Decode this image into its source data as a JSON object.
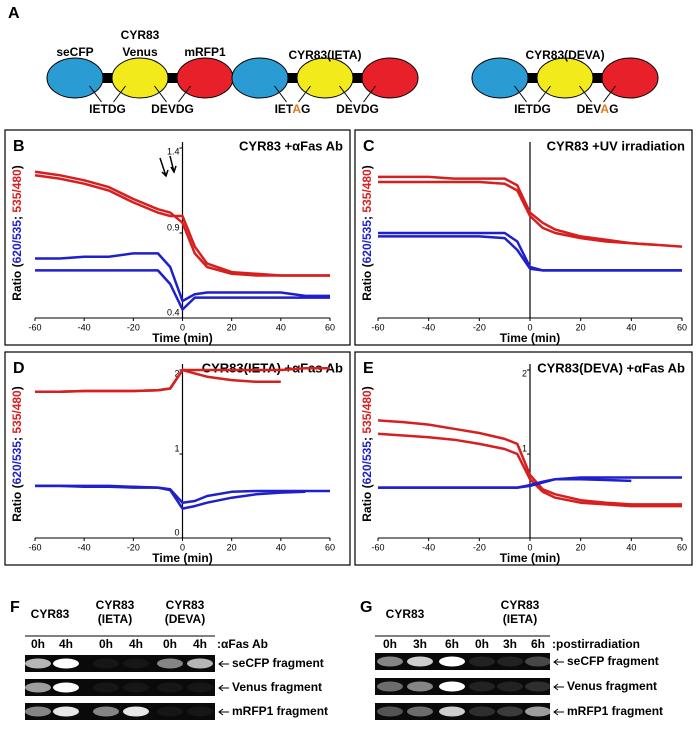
{
  "panel_a": {
    "letter": "A",
    "domains": [
      "seCFP",
      "Venus",
      "mRFP1"
    ],
    "constructs": [
      {
        "name": "CYR83",
        "site1": [
          "IETDG"
        ],
        "site2": [
          "DEVDG"
        ]
      },
      {
        "name": "CYR83(IETA)",
        "site1": [
          "IET",
          "A",
          "G"
        ],
        "site2": [
          "DEVDG"
        ]
      },
      {
        "name": "CYR83(DEVA)",
        "site1": [
          "IETDG"
        ],
        "site2": [
          "DEV",
          "A",
          "G"
        ]
      }
    ]
  },
  "chart_data": [
    {
      "type": "line",
      "letter": "B",
      "title": "CYR83 +αFas Ab",
      "xlabel": "Time (min)",
      "ylabel": [
        "Ratio (",
        "620/535",
        "; ",
        "535/480",
        ")"
      ],
      "ylabel_colors": [
        "#000000",
        "#1f1fcc",
        "#000000",
        "#d62020",
        "#000000"
      ],
      "x": [
        -60,
        -50,
        -40,
        -30,
        -20,
        -10,
        -5,
        0,
        5,
        10,
        20,
        30,
        40,
        50,
        60
      ],
      "xlim": [
        -60,
        60
      ],
      "xticks": [
        -60,
        -40,
        -20,
        0,
        20,
        40,
        60
      ],
      "ylim": [
        0.4,
        1.4
      ],
      "yticks": [
        0.4,
        0.9,
        1.4
      ],
      "series": [
        {
          "color": "#d62020",
          "values": [
            1.24,
            1.22,
            1.19,
            1.15,
            1.08,
            1.02,
            1.0,
            1.0,
            0.82,
            0.72,
            0.67,
            0.66,
            0.65,
            0.65,
            0.65
          ]
        },
        {
          "color": "#d62020",
          "values": [
            1.26,
            1.24,
            1.21,
            1.17,
            1.1,
            1.04,
            1.02,
            0.96,
            0.78,
            0.7,
            0.66,
            0.65,
            0.65,
            0.65,
            0.65
          ]
        },
        {
          "color": "#1f1fcc",
          "values": [
            0.75,
            0.75,
            0.76,
            0.76,
            0.78,
            0.78,
            0.7,
            0.5,
            0.54,
            0.55,
            0.55,
            0.55,
            0.55,
            0.53,
            0.53
          ]
        },
        {
          "color": "#1f1fcc",
          "values": [
            0.68,
            0.68,
            0.68,
            0.68,
            0.68,
            0.68,
            0.6,
            0.45,
            0.52,
            0.52,
            0.52,
            0.52,
            0.52,
            0.52,
            0.52
          ]
        }
      ]
    },
    {
      "type": "line",
      "letter": "C",
      "title": "CYR83 +UV irradiation",
      "xlabel": "Time (min)",
      "ylabel": [
        "Ratio (",
        "620/535",
        "; ",
        "535/480",
        ")"
      ],
      "ylabel_colors": [
        "#000000",
        "#1f1fcc",
        "#000000",
        "#d62020",
        "#000000"
      ],
      "x": [
        -60,
        -50,
        -40,
        -30,
        -20,
        -10,
        -5,
        0,
        5,
        10,
        20,
        30,
        40,
        50,
        60
      ],
      "xlim": [
        -60,
        60
      ],
      "xticks": [
        -60,
        -40,
        -20,
        0,
        20,
        40,
        60
      ],
      "ylim": [
        0,
        1
      ],
      "series": [
        {
          "color": "#d62020",
          "values": [
            0.83,
            0.83,
            0.83,
            0.82,
            0.82,
            0.82,
            0.78,
            0.62,
            0.56,
            0.52,
            0.48,
            0.46,
            0.44,
            0.43,
            0.42
          ]
        },
        {
          "color": "#d62020",
          "values": [
            0.8,
            0.8,
            0.8,
            0.8,
            0.8,
            0.79,
            0.75,
            0.6,
            0.53,
            0.5,
            0.47,
            0.45,
            0.44,
            0.43,
            null
          ]
        },
        {
          "color": "#1f1fcc",
          "values": [
            0.5,
            0.5,
            0.5,
            0.5,
            0.5,
            0.5,
            0.45,
            0.3,
            0.28,
            0.28,
            0.28,
            0.28,
            0.28,
            0.28,
            0.28
          ]
        },
        {
          "color": "#1f1fcc",
          "values": [
            0.48,
            0.48,
            0.48,
            0.48,
            0.48,
            0.47,
            0.4,
            0.29,
            0.28,
            0.28,
            0.28,
            0.28,
            0.28,
            0.28,
            0.28
          ]
        }
      ]
    },
    {
      "type": "line",
      "letter": "D",
      "title": "CYR83(IETA) +αFas Ab",
      "xlabel": "Time (min)",
      "ylabel": [
        "Ratio (",
        "620/535",
        "; ",
        "535/480",
        ")"
      ],
      "ylabel_colors": [
        "#000000",
        "#1f1fcc",
        "#000000",
        "#d62020",
        "#000000"
      ],
      "x": [
        -60,
        -50,
        -40,
        -30,
        -20,
        -10,
        -5,
        0,
        5,
        10,
        20,
        30,
        40,
        50,
        60
      ],
      "xlim": [
        -60,
        60
      ],
      "xticks": [
        -60,
        -40,
        -20,
        0,
        20,
        40,
        60
      ],
      "ylim": [
        0,
        2
      ],
      "yticks": [
        0,
        1,
        2
      ],
      "series": [
        {
          "color": "#d62020",
          "values": [
            1.74,
            1.74,
            1.75,
            1.75,
            1.75,
            1.76,
            1.78,
            2.0,
            1.96,
            1.92,
            1.88,
            1.86,
            1.86,
            null,
            null
          ]
        },
        {
          "color": "#d62020",
          "values": [
            1.74,
            1.74,
            1.75,
            1.75,
            1.75,
            1.76,
            1.78,
            2.0,
            2.0,
            2.0,
            2.0,
            2.0,
            2.0,
            2.02,
            2.02
          ]
        },
        {
          "color": "#1f1fcc",
          "values": [
            0.62,
            0.62,
            0.62,
            0.62,
            0.61,
            0.6,
            0.58,
            0.42,
            0.44,
            0.5,
            0.55,
            0.56,
            0.56,
            0.56,
            0.56
          ]
        },
        {
          "color": "#1f1fcc",
          "values": [
            0.62,
            0.62,
            0.61,
            0.61,
            0.6,
            0.6,
            0.57,
            0.35,
            0.38,
            0.42,
            0.48,
            0.52,
            0.54,
            0.55,
            null
          ]
        }
      ]
    },
    {
      "type": "line",
      "letter": "E",
      "title": "CYR83(DEVA) +αFas Ab",
      "xlabel": "Time (min)",
      "ylabel": [
        "Ratio (",
        "620/535",
        "; ",
        "535/480",
        ")"
      ],
      "ylabel_colors": [
        "#000000",
        "#1f1fcc",
        "#000000",
        "#d62020",
        "#000000"
      ],
      "x": [
        -60,
        -50,
        -40,
        -30,
        -20,
        -10,
        -5,
        0,
        5,
        10,
        20,
        30,
        40,
        50,
        60
      ],
      "xlim": [
        -60,
        60
      ],
      "xticks": [
        -60,
        -40,
        -20,
        0,
        20,
        40,
        60
      ],
      "ylim": [
        0,
        2
      ],
      "yticks": [
        1,
        2
      ],
      "series": [
        {
          "color": "#d62020",
          "values": [
            1.4,
            1.38,
            1.35,
            1.3,
            1.25,
            1.18,
            1.12,
            0.75,
            0.58,
            0.52,
            0.45,
            0.42,
            0.4,
            0.4,
            0.4
          ]
        },
        {
          "color": "#d62020",
          "values": [
            1.24,
            1.22,
            1.2,
            1.17,
            1.12,
            1.06,
            1.0,
            0.7,
            0.55,
            0.48,
            0.42,
            0.4,
            0.38,
            0.38,
            0.38
          ]
        },
        {
          "color": "#1f1fcc",
          "values": [
            0.6,
            0.6,
            0.6,
            0.6,
            0.6,
            0.6,
            0.6,
            0.62,
            0.66,
            0.7,
            0.72,
            0.72,
            0.72,
            0.72,
            0.72
          ]
        },
        {
          "color": "#1f1fcc",
          "values": [
            0.6,
            0.6,
            0.6,
            0.6,
            0.6,
            0.6,
            0.6,
            0.63,
            0.67,
            0.7,
            0.7,
            0.69,
            0.68,
            null,
            null
          ]
        }
      ]
    }
  ],
  "panel_f": {
    "letter": "F",
    "groups": [
      [
        "CYR83"
      ],
      [
        "CYR83",
        "(IETA)"
      ],
      [
        "CYR83",
        "(DEVA)"
      ]
    ],
    "lanes": [
      "0h",
      "4h",
      "0h",
      "4h",
      "0h",
      "4h"
    ],
    "treatment": ":αFas Ab",
    "bands": [
      "seCFP fragment",
      "Venus fragment",
      "mRFP1 fragment"
    ]
  },
  "panel_g": {
    "letter": "G",
    "groups": [
      [
        "CYR83"
      ],
      [
        "CYR83",
        "(IETA)"
      ]
    ],
    "lanes": [
      "0h",
      "3h",
      "6h",
      "0h",
      "3h",
      "6h"
    ],
    "treatment": ":postirradiation",
    "bands": [
      "seCFP fragment",
      "Venus fragment",
      "mRFP1 fragment"
    ]
  }
}
